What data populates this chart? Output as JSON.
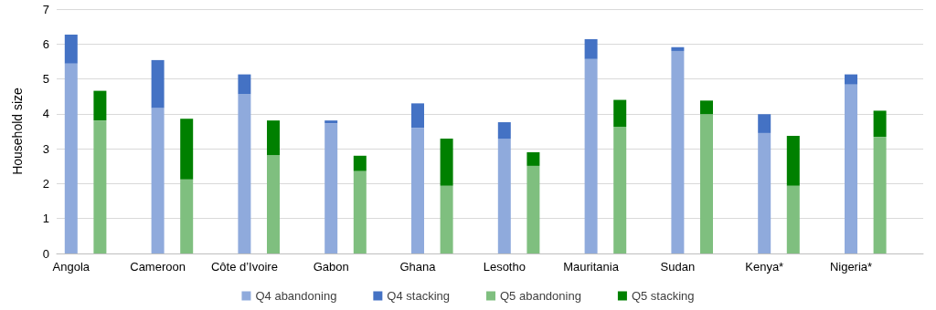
{
  "chart_data": {
    "type": "bar",
    "ylabel": "Household size",
    "stacked": true,
    "grid": "y",
    "legend": "bottom",
    "categories": [
      "Angola",
      null,
      null,
      "Cameroon",
      null,
      null,
      "Côte d’Ivoire",
      null,
      null,
      "Gabon",
      null,
      null,
      "Ghana",
      null,
      null,
      "Lesotho",
      null,
      null,
      "Mauritania",
      null,
      null,
      "Sudan",
      null,
      null,
      "Kenya*",
      null,
      null,
      "Nigeria*",
      null,
      null
    ],
    "ylim": [
      0,
      7
    ],
    "yticks": [
      0,
      1,
      2,
      3,
      4,
      5,
      6,
      7
    ],
    "series": [
      {
        "name": "Q4 abandoning",
        "color": "#8faadc",
        "values": [
          5.44,
          null,
          null,
          4.17,
          null,
          null,
          4.56,
          null,
          null,
          3.73,
          null,
          null,
          3.6,
          null,
          null,
          3.29,
          null,
          null,
          5.57,
          null,
          null,
          5.8,
          null,
          null,
          3.45,
          null,
          null,
          4.84,
          null,
          null
        ]
      },
      {
        "name": "Q4 stacking",
        "color": "#4472c4",
        "values": [
          0.83,
          null,
          null,
          1.37,
          null,
          null,
          0.57,
          null,
          null,
          0.08,
          null,
          null,
          0.7,
          null,
          null,
          0.47,
          null,
          null,
          0.57,
          null,
          null,
          0.11,
          null,
          null,
          0.54,
          null,
          null,
          0.29,
          null,
          null
        ]
      },
      {
        "name": "Q5 abandoning",
        "color": "#7fbf7f",
        "values": [
          null,
          3.81,
          null,
          null,
          2.12,
          null,
          null,
          2.82,
          null,
          null,
          2.36,
          null,
          null,
          1.94,
          null,
          null,
          2.51,
          null,
          null,
          3.63,
          null,
          null,
          3.99,
          null,
          null,
          1.94,
          null,
          null,
          3.34,
          null
        ]
      },
      {
        "name": "Q5 stacking",
        "color": "#008000",
        "values": [
          null,
          0.85,
          null,
          null,
          1.74,
          null,
          null,
          0.99,
          null,
          null,
          0.44,
          null,
          null,
          1.35,
          null,
          null,
          0.39,
          null,
          null,
          0.77,
          null,
          null,
          0.39,
          null,
          null,
          1.43,
          null,
          null,
          0.75,
          null
        ]
      }
    ]
  }
}
